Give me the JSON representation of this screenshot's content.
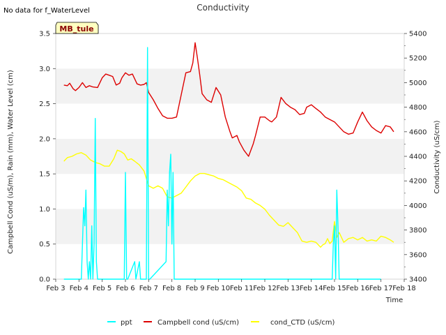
{
  "chart_data": {
    "type": "line",
    "title": "Conductivity",
    "note": "No data for f_WaterLevel",
    "site_label": "MB_tule",
    "xlabel": "Time",
    "ylabel_left": "Campbell Cond (uS/m), Rain (mm), Water Level (cm)",
    "ylabel_right": "Conductivity (uS/cm)",
    "x_ticks": [
      "Feb 3",
      "Feb 4",
      "Feb 5",
      "Feb 6",
      "Feb 7",
      "Feb 8",
      "Feb 9",
      "Feb 10",
      "Feb 11",
      "Feb 12",
      "Feb 13",
      "Feb 14",
      "Feb 15",
      "Feb 16",
      "Feb 17",
      "Feb 18"
    ],
    "x_range_days": [
      3,
      18
    ],
    "ylim_left": [
      0.0,
      3.5
    ],
    "y_ticks_left": [
      "0.0",
      "0.5",
      "1.0",
      "1.5",
      "2.0",
      "2.5",
      "3.0",
      "3.5"
    ],
    "ylim_right": [
      3400,
      5400
    ],
    "y_ticks_right": [
      "3400",
      "3600",
      "3800",
      "4000",
      "4200",
      "4400",
      "4600",
      "4800",
      "5000",
      "5200",
      "5400"
    ],
    "grid": "horizontal bands",
    "legend_position": "bottom",
    "series": [
      {
        "name": "ppt",
        "axis": "left",
        "color": "#00ffff",
        "x": [
          3.35,
          4.1,
          4.15,
          4.2,
          4.25,
          4.3,
          4.35,
          4.4,
          4.45,
          4.5,
          4.55,
          4.6,
          4.65,
          4.7,
          4.75,
          4.8,
          4.85,
          4.9,
          4.95,
          5.0,
          5.1,
          5.95,
          6.0,
          6.05,
          6.1,
          6.4,
          6.45,
          6.6,
          6.65,
          6.9,
          6.95,
          7.0,
          7.05,
          7.75,
          7.8,
          7.85,
          7.9,
          7.95,
          8.0,
          8.05,
          8.1,
          8.15,
          8.2,
          14.9,
          14.95,
          15.0,
          15.05,
          15.1,
          15.15,
          15.2,
          15.25,
          15.3,
          17.0
        ],
        "y": [
          0,
          0,
          0.5,
          1.02,
          0.76,
          1.27,
          0.25,
          0,
          0.25,
          0,
          0.76,
          0,
          0.5,
          2.29,
          0.25,
          0,
          0,
          0,
          0,
          0,
          0,
          0,
          1.52,
          0,
          0,
          0.25,
          0,
          0.25,
          0,
          0,
          3.3,
          0,
          0,
          0.25,
          1.27,
          0.76,
          1.52,
          1.78,
          0.5,
          1.52,
          0,
          0,
          0,
          0,
          0.5,
          0.76,
          0,
          1.27,
          0.76,
          0,
          0,
          0,
          0
        ]
      },
      {
        "name": "Campbell cond (uS/cm)",
        "axis": "right",
        "color": "#dd0000",
        "x": [
          3.35,
          3.5,
          3.6,
          3.75,
          3.85,
          4.0,
          4.15,
          4.3,
          4.45,
          4.6,
          4.8,
          5.0,
          5.15,
          5.3,
          5.45,
          5.6,
          5.75,
          5.85,
          6.0,
          6.15,
          6.3,
          6.5,
          6.65,
          6.8,
          6.9,
          7.0,
          7.2,
          7.4,
          7.6,
          7.8,
          8.0,
          8.2,
          8.4,
          8.6,
          8.8,
          8.9,
          9.0,
          9.1,
          9.2,
          9.3,
          9.5,
          9.7,
          9.9,
          10.1,
          10.3,
          10.5,
          10.6,
          10.8,
          10.9,
          11.1,
          11.3,
          11.5,
          11.6,
          11.8,
          12.0,
          12.2,
          12.3,
          12.5,
          12.7,
          12.9,
          13.1,
          13.3,
          13.5,
          13.7,
          13.8,
          14.0,
          14.2,
          14.4,
          14.6,
          14.8,
          15.0,
          15.2,
          15.4,
          15.6,
          15.8,
          16.0,
          16.2,
          16.4,
          16.6,
          16.8,
          17.0,
          17.2,
          17.4,
          17.55
        ],
        "y": [
          4980,
          4975,
          4995,
          4950,
          4935,
          4960,
          5000,
          4960,
          4975,
          4965,
          4960,
          5040,
          5070,
          5060,
          5050,
          4980,
          4995,
          5040,
          5080,
          5060,
          5070,
          4990,
          4980,
          4985,
          5000,
          4920,
          4860,
          4790,
          4730,
          4710,
          4710,
          4720,
          4900,
          5080,
          5090,
          5160,
          5325,
          5200,
          5060,
          4910,
          4860,
          4840,
          4960,
          4900,
          4720,
          4600,
          4550,
          4570,
          4520,
          4450,
          4400,
          4500,
          4570,
          4720,
          4720,
          4690,
          4680,
          4720,
          4880,
          4830,
          4800,
          4780,
          4740,
          4750,
          4800,
          4820,
          4790,
          4760,
          4720,
          4700,
          4680,
          4640,
          4600,
          4580,
          4590,
          4680,
          4760,
          4690,
          4640,
          4610,
          4590,
          4650,
          4640,
          4600
        ]
      },
      {
        "name": "cond_CTD (uS/cm)",
        "axis": "right",
        "color": "#ffff00",
        "x": [
          3.35,
          3.5,
          3.7,
          3.9,
          4.1,
          4.3,
          4.5,
          4.7,
          4.9,
          5.1,
          5.3,
          5.5,
          5.65,
          5.8,
          5.95,
          6.1,
          6.25,
          6.4,
          6.6,
          6.8,
          7.0,
          7.2,
          7.4,
          7.6,
          7.8,
          8.0,
          8.2,
          8.4,
          8.6,
          8.8,
          9.0,
          9.2,
          9.4,
          9.6,
          9.8,
          10.0,
          10.2,
          10.4,
          10.6,
          10.8,
          11.0,
          11.2,
          11.4,
          11.6,
          11.8,
          12.0,
          12.2,
          12.4,
          12.6,
          12.8,
          13.0,
          13.2,
          13.4,
          13.6,
          13.8,
          14.0,
          14.2,
          14.4,
          14.5,
          14.6,
          14.7,
          14.8,
          14.9,
          15.0,
          15.1,
          15.2,
          15.4,
          15.6,
          15.8,
          16.0,
          16.2,
          16.4,
          16.6,
          16.8,
          17.0,
          17.2,
          17.4,
          17.55
        ],
        "y": [
          4360,
          4390,
          4400,
          4420,
          4430,
          4410,
          4370,
          4350,
          4340,
          4320,
          4320,
          4380,
          4450,
          4440,
          4420,
          4370,
          4380,
          4360,
          4330,
          4280,
          4160,
          4140,
          4160,
          4140,
          4070,
          4060,
          4080,
          4100,
          4150,
          4200,
          4240,
          4260,
          4260,
          4250,
          4240,
          4220,
          4210,
          4190,
          4170,
          4150,
          4120,
          4060,
          4050,
          4020,
          4000,
          3970,
          3920,
          3880,
          3840,
          3830,
          3860,
          3820,
          3780,
          3710,
          3700,
          3710,
          3700,
          3660,
          3680,
          3690,
          3730,
          3690,
          3710,
          3870,
          3740,
          3780,
          3700,
          3730,
          3740,
          3720,
          3740,
          3710,
          3720,
          3710,
          3750,
          3740,
          3720,
          3700
        ]
      }
    ]
  }
}
